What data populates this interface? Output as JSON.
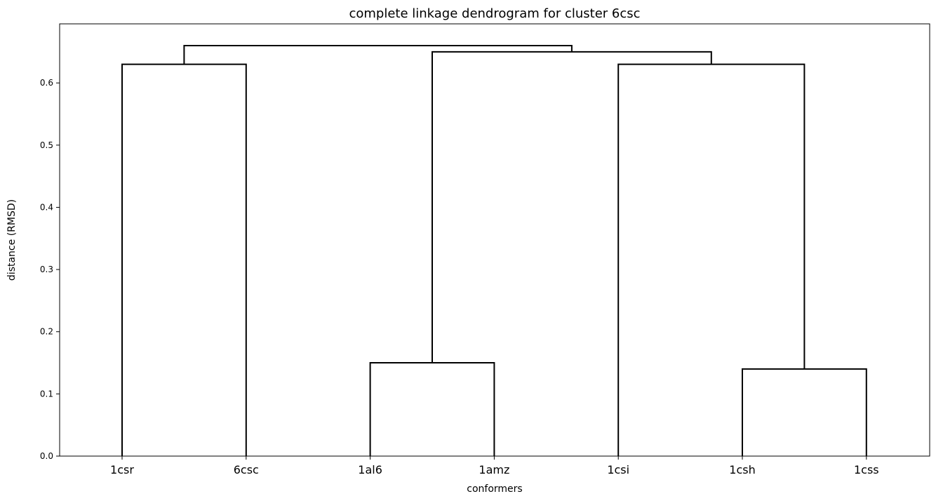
{
  "chart_data": {
    "type": "dendrogram",
    "title": "complete linkage dendrogram for cluster 6csc",
    "xlabel": "conformers",
    "ylabel": "distance (RMSD)",
    "leaves": [
      "1csr",
      "6csc",
      "1al6",
      "1amz",
      "1csi",
      "1csh",
      "1css"
    ],
    "ylim": [
      0,
      0.695
    ],
    "yticks": [
      "0.0",
      "0.1",
      "0.2",
      "0.3",
      "0.4",
      "0.5",
      "0.6"
    ],
    "ytick_values": [
      0.0,
      0.1,
      0.2,
      0.3,
      0.4,
      0.5,
      0.6
    ],
    "grid": false,
    "merges": [
      {
        "left": "1csr",
        "right": "6csc",
        "height": 0.63
      },
      {
        "left": "1al6",
        "right": "1amz",
        "height": 0.15
      },
      {
        "left": "1csh",
        "right": "1css",
        "height": 0.14
      },
      {
        "left": "1csi",
        "right": "{1csh,1css}",
        "height": 0.63
      },
      {
        "left": "{1al6,1amz}",
        "right": "{1csi,1csh,1css}",
        "height": 0.65
      },
      {
        "left": "{1csr,6csc}",
        "right": "{1al6,1amz,1csi,1csh,1css}",
        "height": 0.66
      }
    ]
  }
}
